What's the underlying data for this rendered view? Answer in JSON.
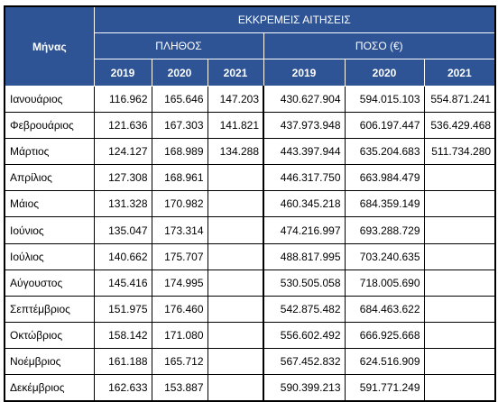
{
  "table": {
    "month_header": "Μήνας",
    "group_header": "ΕΚΚΡΕΜΕΙΣ ΑΙΤΗΣΕΙΣ",
    "count_header": "ΠΛΗΘΟΣ",
    "amount_header": "ΠΟΣΟ (€)",
    "years": [
      "2019",
      "2020",
      "2021"
    ],
    "rows": [
      {
        "month": "Ιανουάριος",
        "c2019": "116.962",
        "c2020": "165.646",
        "c2021": "147.203",
        "a2019": "430.627.904",
        "a2020": "594.015.103",
        "a2021": "554.871.241"
      },
      {
        "month": "Φεβρουάριος",
        "c2019": "121.636",
        "c2020": "167.303",
        "c2021": "141.821",
        "a2019": "437.973.948",
        "a2020": "606.197.447",
        "a2021": "536.429.468"
      },
      {
        "month": "Μάρτιος",
        "c2019": "124.127",
        "c2020": "168.989",
        "c2021": "134.288",
        "a2019": "443.397.944",
        "a2020": "635.204.683",
        "a2021": "511.734.280"
      },
      {
        "month": "Απρίλιος",
        "c2019": "127.308",
        "c2020": "168.961",
        "c2021": "",
        "a2019": "446.317.750",
        "a2020": "663.984.479",
        "a2021": ""
      },
      {
        "month": "Μάιος",
        "c2019": "131.328",
        "c2020": "170.982",
        "c2021": "",
        "a2019": "460.345.218",
        "a2020": "684.359.149",
        "a2021": ""
      },
      {
        "month": "Ιούνιος",
        "c2019": "135.047",
        "c2020": "173.314",
        "c2021": "",
        "a2019": "474.216.997",
        "a2020": "693.288.729",
        "a2021": ""
      },
      {
        "month": "Ιούλιος",
        "c2019": "140.662",
        "c2020": "175.707",
        "c2021": "",
        "a2019": "488.817.995",
        "a2020": "703.240.635",
        "a2021": ""
      },
      {
        "month": "Αύγουστος",
        "c2019": "145.416",
        "c2020": "174.995",
        "c2021": "",
        "a2019": "530.505.058",
        "a2020": "718.005.690",
        "a2021": ""
      },
      {
        "month": "Σεπτέμβριος",
        "c2019": "151.975",
        "c2020": "176.460",
        "c2021": "",
        "a2019": "542.875.482",
        "a2020": "684.463.622",
        "a2021": ""
      },
      {
        "month": "Οκτώβριος",
        "c2019": "158.142",
        "c2020": "171.080",
        "c2021": "",
        "a2019": "556.602.492",
        "a2020": "666.925.668",
        "a2021": ""
      },
      {
        "month": "Νοέμβριος",
        "c2019": "161.188",
        "c2020": "165.712",
        "c2021": "",
        "a2019": "567.452.832",
        "a2020": "624.516.909",
        "a2021": ""
      },
      {
        "month": "Δεκέμβριος",
        "c2019": "162.633",
        "c2020": "153.887",
        "c2021": "",
        "a2019": "590.399.213",
        "a2020": "591.771.249",
        "a2021": ""
      }
    ]
  }
}
